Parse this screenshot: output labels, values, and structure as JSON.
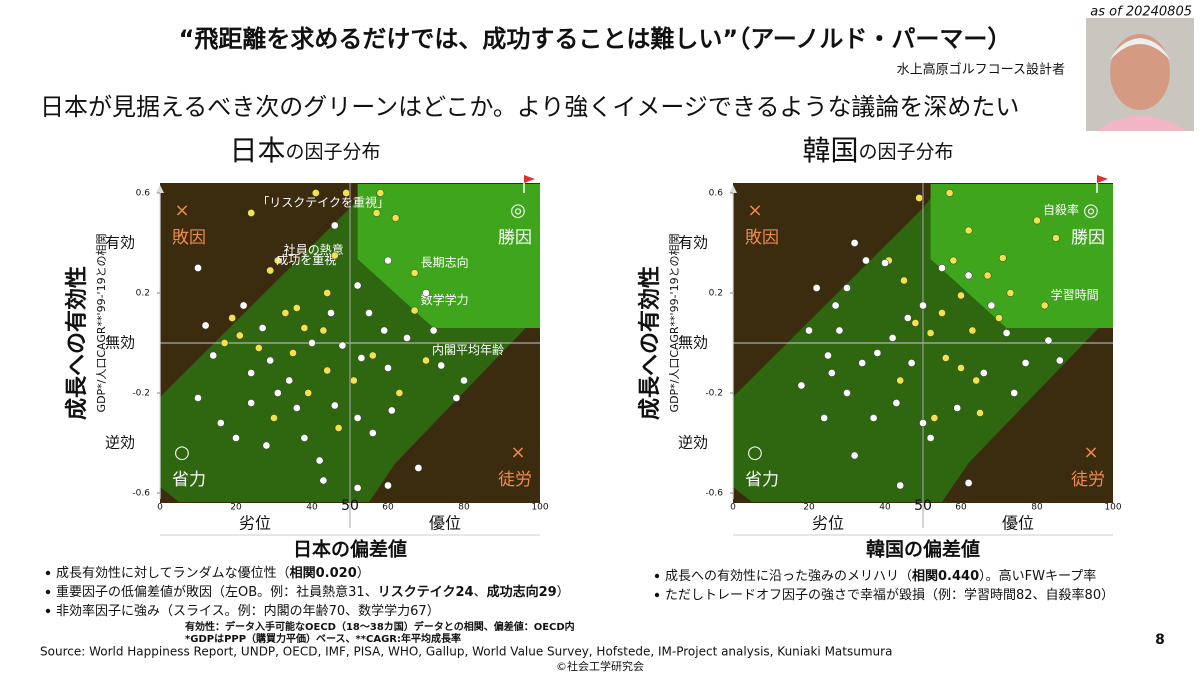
{
  "header": {
    "as_of": "as of 20240805",
    "quote": "“飛距離を求めるだけでは、成功することは難しい”（アーノルド・パーマー）",
    "attribution": "水上高原ゴルフコース設計者",
    "headline": "日本が見据えるべき次のグリーンはどこか。より強くイメージできるような議論を深めたい"
  },
  "chart_data": [
    {
      "type": "scatter",
      "title": "日本",
      "title_suffix": "の因子分布",
      "ylabel": "成長への有効性",
      "ylabel_sub": "GDP*/人口CAGR**'99-'19との相関",
      "xlabel": "日本の偏差値",
      "xlim": [
        0,
        100
      ],
      "ylim": [
        -0.6,
        0.6
      ],
      "xticks": [
        0,
        20,
        40,
        60,
        80,
        100
      ],
      "yticks": [
        -0.6,
        -0.2,
        0.2,
        0.6
      ],
      "midline": 50,
      "y_levels": [
        {
          "value": 0.4,
          "label": "有効"
        },
        {
          "value": 0,
          "label": "無効"
        },
        {
          "value": -0.4,
          "label": "逆効"
        }
      ],
      "x_regions": [
        {
          "value": 25,
          "label": "劣位"
        },
        {
          "value": 75,
          "label": "優位"
        }
      ],
      "quadrants": [
        {
          "corner": "top-left",
          "symbol": "×",
          "label": "敗因",
          "color": "#f08a4b"
        },
        {
          "corner": "top-right",
          "symbol": "◎",
          "label": "勝因",
          "color": "#ffffff"
        },
        {
          "corner": "bottom-left",
          "symbol": "○",
          "label": "省力",
          "color": "#ffffff"
        },
        {
          "corner": "bottom-right",
          "symbol": "×",
          "label": "徒労",
          "color": "#f08a4b"
        }
      ],
      "series": [
        {
          "color": "#f2e34c",
          "x": [
            24,
            31,
            29,
            67,
            67,
            70,
            41,
            49,
            58,
            57,
            46,
            44,
            36,
            33,
            38,
            43,
            62,
            21,
            17,
            26,
            35,
            44,
            39,
            51,
            19,
            30,
            47,
            63,
            56
          ],
          "values": [
            0.52,
            0.33,
            0.29,
            0.28,
            0.13,
            -0.07,
            0.6,
            0.6,
            0.6,
            0.52,
            0.35,
            0.2,
            0.14,
            0.12,
            0.06,
            0.05,
            0.5,
            0.03,
            0.0,
            -0.02,
            -0.04,
            -0.11,
            -0.2,
            -0.15,
            0.1,
            -0.3,
            -0.34,
            -0.2,
            -0.05
          ],
          "labels": [
            "「リスクテイクを重視」",
            "社員の熱意",
            "成功を重視",
            "長期志向",
            "数学学力",
            "内閣平均年齢",
            null,
            null,
            null,
            null,
            null,
            null,
            null,
            null,
            null,
            null,
            null,
            null,
            null,
            null,
            null,
            null,
            null,
            null,
            null,
            null,
            null,
            null,
            null
          ]
        },
        {
          "color": "#ffffff",
          "x": [
            10,
            22,
            27,
            45,
            52,
            55,
            59,
            65,
            72,
            74,
            80,
            60,
            53,
            48,
            40,
            29,
            24,
            34,
            14,
            12,
            10,
            16,
            20,
            28,
            38,
            42,
            52,
            61,
            56,
            46,
            36,
            31,
            24,
            60,
            52,
            68,
            46,
            60,
            70,
            78,
            43
          ],
          "values": [
            0.3,
            0.15,
            0.06,
            0.12,
            0.23,
            0.12,
            0.05,
            0.02,
            0.05,
            -0.09,
            -0.15,
            -0.1,
            -0.06,
            -0.01,
            0.0,
            -0.07,
            -0.12,
            -0.15,
            -0.05,
            0.07,
            -0.22,
            -0.32,
            -0.38,
            -0.41,
            -0.38,
            -0.47,
            -0.3,
            -0.27,
            -0.36,
            -0.25,
            -0.26,
            -0.2,
            -0.24,
            -0.57,
            -0.58,
            -0.5,
            0.47,
            0.33,
            0.2,
            -0.22,
            -0.55
          ]
        }
      ],
      "notes": [
        [
          {
            "text": "成長有効性に対してランダムな優位性（"
          },
          {
            "text": "相関0.020",
            "bold": true
          },
          {
            "text": "）"
          }
        ],
        [
          {
            "text": "重要因子の低偏差値が敗因（左OB。例：社員熱意31、"
          },
          {
            "text": "リスクテイク24",
            "bold": true
          },
          {
            "text": "、"
          },
          {
            "text": "成功志向29",
            "bold": true
          },
          {
            "text": "）"
          }
        ],
        [
          {
            "text": "非効率因子に強み（スライス。例：内閣の年齢70、数学学力67）"
          }
        ]
      ]
    },
    {
      "type": "scatter",
      "title": "韓国",
      "title_suffix": "の因子分布",
      "ylabel": "成長への有効性",
      "ylabel_sub": "GDP*/人口CAGR**'99-'19との相関",
      "xlabel": "韓国の偏差値",
      "xlim": [
        0,
        100
      ],
      "ylim": [
        -0.6,
        0.6
      ],
      "xticks": [
        0,
        20,
        40,
        60,
        80,
        100
      ],
      "yticks": [
        -0.6,
        -0.2,
        0.2,
        0.6
      ],
      "midline": 50,
      "y_levels": [
        {
          "value": 0.4,
          "label": "有効"
        },
        {
          "value": 0,
          "label": "無効"
        },
        {
          "value": -0.4,
          "label": "逆効"
        }
      ],
      "x_regions": [
        {
          "value": 25,
          "label": "劣位"
        },
        {
          "value": 75,
          "label": "優位"
        }
      ],
      "quadrants": [
        {
          "corner": "top-left",
          "symbol": "×",
          "label": "敗因",
          "color": "#f08a4b"
        },
        {
          "corner": "top-right",
          "symbol": "◎",
          "label": "勝因",
          "color": "#ffffff"
        },
        {
          "corner": "bottom-left",
          "symbol": "○",
          "label": "省力",
          "color": "#ffffff"
        },
        {
          "corner": "bottom-right",
          "symbol": "×",
          "label": "徒労",
          "color": "#f08a4b"
        }
      ],
      "series": [
        {
          "color": "#f2e34c",
          "x": [
            80,
            82,
            49,
            57,
            62,
            71,
            67,
            73,
            60,
            55,
            48,
            52,
            63,
            45,
            41,
            56,
            60,
            64,
            53,
            65,
            44,
            70,
            85,
            58
          ],
          "values": [
            0.49,
            0.15,
            0.58,
            0.6,
            0.45,
            0.34,
            0.27,
            0.2,
            0.19,
            0.12,
            0.08,
            0.04,
            0.05,
            0.25,
            0.33,
            -0.06,
            -0.1,
            -0.15,
            -0.3,
            -0.28,
            -0.15,
            0.1,
            0.42,
            0.33
          ],
          "labels": [
            "自殺率",
            "学習時間",
            null,
            null,
            null,
            null,
            null,
            null,
            null,
            null,
            null,
            null,
            null,
            null,
            null,
            null,
            null,
            null,
            null,
            null,
            null,
            null,
            null,
            null
          ]
        },
        {
          "color": "#ffffff",
          "x": [
            32,
            35,
            30,
            40,
            27,
            22,
            20,
            25,
            18,
            26,
            30,
            34,
            38,
            42,
            47,
            50,
            55,
            62,
            68,
            72,
            77,
            83,
            86,
            74,
            66,
            59,
            50,
            43,
            37,
            32,
            44,
            52,
            62,
            24,
            46,
            28
          ],
          "values": [
            0.4,
            0.33,
            0.22,
            0.32,
            0.15,
            0.22,
            0.05,
            -0.05,
            -0.17,
            -0.12,
            -0.2,
            -0.08,
            -0.04,
            0.02,
            -0.08,
            0.15,
            0.3,
            0.27,
            0.15,
            0.04,
            -0.08,
            0.01,
            -0.07,
            -0.2,
            -0.12,
            -0.26,
            -0.32,
            -0.24,
            -0.3,
            -0.45,
            -0.57,
            -0.38,
            -0.56,
            -0.3,
            0.1,
            0.05
          ]
        }
      ],
      "notes": [
        [
          {
            "text": "成長への有効性に沿った強みのメリハリ（"
          },
          {
            "text": "相関0.440",
            "bold": true
          },
          {
            "text": "）。高いFWキープ率"
          }
        ],
        [
          {
            "text": "ただしトレードオフ因子の強さで幸福が毀損（例：学習時間82、自殺率80）"
          }
        ]
      ]
    }
  ],
  "footer": {
    "definitions": [
      "有効性：データ入手可能なOECD（18〜38カ国）データとの相関、偏差値：OECD内",
      "*GDPはPPP（購買力平価）ベース、**CAGR:年平均成長率"
    ],
    "source": "Source: World Happiness Report, UNDP, OECD, IMF, PISA, WHO, Gallup, World Value Survey, Hofstede, IM-Project analysis, Kuniaki Matsumura",
    "copyright": "©社会工学研究会",
    "page": "8"
  }
}
